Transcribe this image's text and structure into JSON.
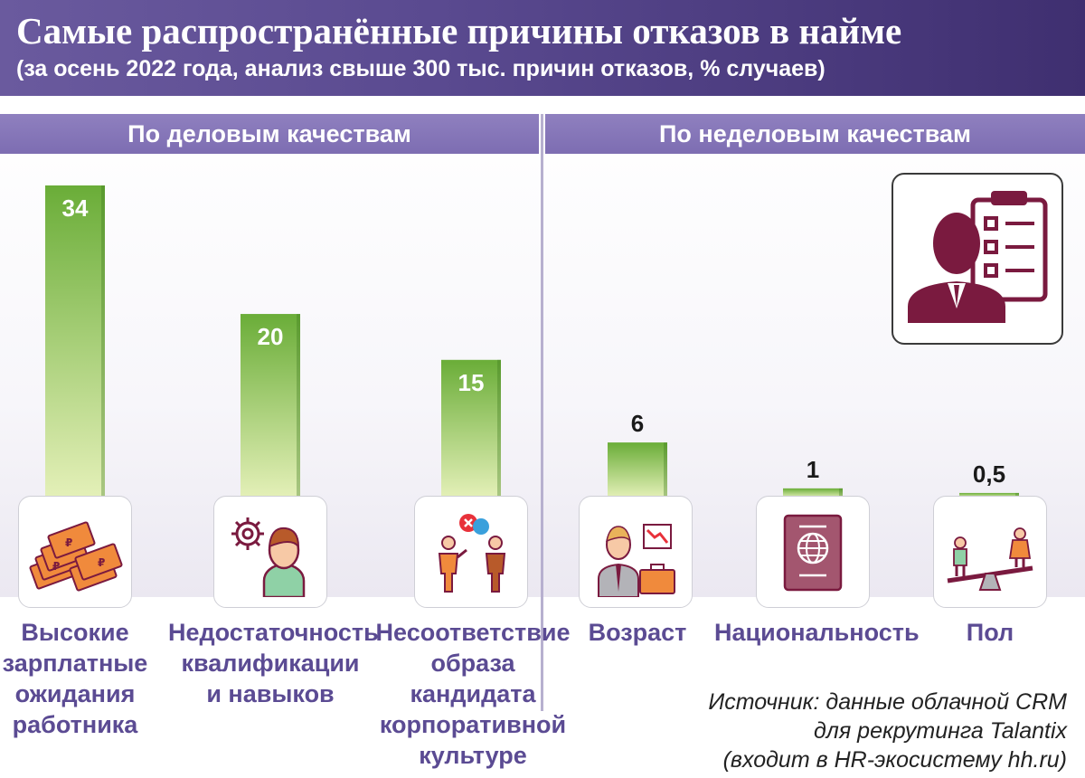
{
  "header": {
    "title": "Самые распространённые причины отказов в найме",
    "subtitle": "(за осень 2022 года, анализ свыше 300 тыс. причин отказов, % случаев)"
  },
  "sections": {
    "business": "По деловым качествам",
    "nonbusiness": "По неделовым качествам"
  },
  "source_lines": [
    "Источник: данные облачной CRM",
    "для рекрутинга Talantix",
    "(входит в HR-экосистему hh.ru)"
  ],
  "colors": {
    "header": "#4f3f85",
    "section_bar": "#8677b8",
    "bar_top": "#6fb03c",
    "bar_bottom": "#e2efb6",
    "label": "#5b4b93",
    "icon_accent": "#7a1a3f"
  },
  "chart_data": {
    "type": "bar",
    "categories": [
      "Высокие зарплатные ожидания работника",
      "Недостаточность квалификации и навыков",
      "Несоответствие образа кандидата корпоративной культуре",
      "Возраст",
      "Национальность",
      "Пол"
    ],
    "category_lines": [
      [
        "Высокие",
        "зарплатные",
        "ожидания",
        "работника"
      ],
      [
        "Недостаточность",
        "квалификации",
        "и навыков"
      ],
      [
        "Несоответствие",
        "образа кандидата",
        "корпоративной",
        "культуре"
      ],
      [
        "Возраст"
      ],
      [
        "Национальность"
      ],
      [
        "Пол"
      ]
    ],
    "groups": [
      "По деловым качествам",
      "По деловым качествам",
      "По деловым качествам",
      "По неделовым качествам",
      "По неделовым качествам",
      "По неделовым качествам"
    ],
    "values": [
      34,
      20,
      15,
      6,
      1,
      0.5
    ],
    "value_labels": [
      "34",
      "20",
      "15",
      "6",
      "1",
      "0,5"
    ],
    "icons": [
      "money-stack-icon",
      "skills-person-gear-icon",
      "culture-conflict-icon",
      "age-businessman-icon",
      "passport-icon",
      "gender-scale-icon"
    ],
    "ylim": [
      0,
      34
    ],
    "grid": false
  }
}
